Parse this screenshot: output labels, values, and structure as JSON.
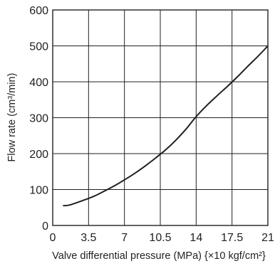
{
  "chart_data": {
    "type": "line",
    "xlabel": "Valve differential pressure (MPa) {×10 kgf/cm²}",
    "ylabel": "Flow rate (cm³/min)",
    "xlim": [
      0,
      21
    ],
    "ylim": [
      0,
      600
    ],
    "x_ticks": [
      "0",
      "3.5",
      "7",
      "10.5",
      "14",
      "17.5",
      "21"
    ],
    "y_ticks": [
      "0",
      "100",
      "200",
      "300",
      "400",
      "500",
      "600"
    ],
    "grid": true,
    "series": [
      {
        "color": "#231f20",
        "x": [
          1,
          1.5,
          2,
          3,
          4,
          5,
          6,
          7,
          8,
          9,
          10,
          11,
          12,
          13,
          14,
          15,
          16,
          17,
          18,
          19,
          20,
          21
        ],
        "y": [
          55,
          56,
          60,
          70,
          81,
          95,
          110,
          127,
          145,
          165,
          187,
          210,
          237,
          268,
          303,
          333,
          360,
          386,
          413,
          442,
          470,
          500
        ]
      }
    ]
  }
}
